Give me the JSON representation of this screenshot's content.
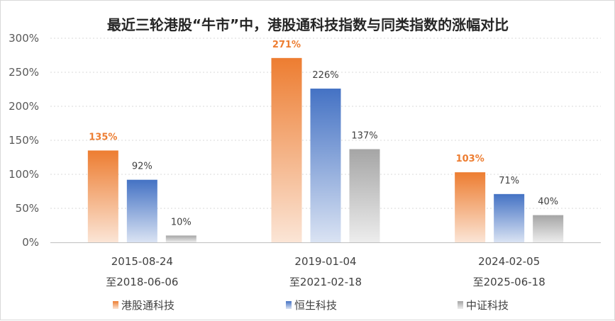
{
  "chart_data": {
    "type": "bar",
    "title": "最近三轮港股“牛市”中，港股通科技指数与同类指数的涨幅对比",
    "categories": [
      [
        "2015-08-24",
        "至2018-06-06"
      ],
      [
        "2019-01-04",
        "至2021-02-18"
      ],
      [
        "2024-02-05",
        "至2025-06-18"
      ]
    ],
    "series": [
      {
        "name": "港股通科技",
        "values": [
          135,
          271,
          103
        ],
        "labels": [
          "135%",
          "271%",
          "103%"
        ],
        "color_top": "#ed7d31",
        "color_bottom": "#fbe5d6",
        "highlight": true
      },
      {
        "name": "恒生科技",
        "values": [
          92,
          226,
          71
        ],
        "labels": [
          "92%",
          "226%",
          "71%"
        ],
        "color_top": "#4472c4",
        "color_bottom": "#dae3f3",
        "highlight": false
      },
      {
        "name": "中证科技",
        "values": [
          10,
          137,
          40
        ],
        "labels": [
          "10%",
          "137%",
          "40%"
        ],
        "color_top": "#a5a5a5",
        "color_bottom": "#ededed",
        "highlight": false
      }
    ],
    "y_ticks": [
      "0%",
      "50%",
      "100%",
      "150%",
      "200%",
      "250%",
      "300%"
    ],
    "ylim": [
      0,
      300
    ],
    "ylabel": "",
    "xlabel": "",
    "grid": "horizontal dotted",
    "legend_position": "bottom"
  }
}
